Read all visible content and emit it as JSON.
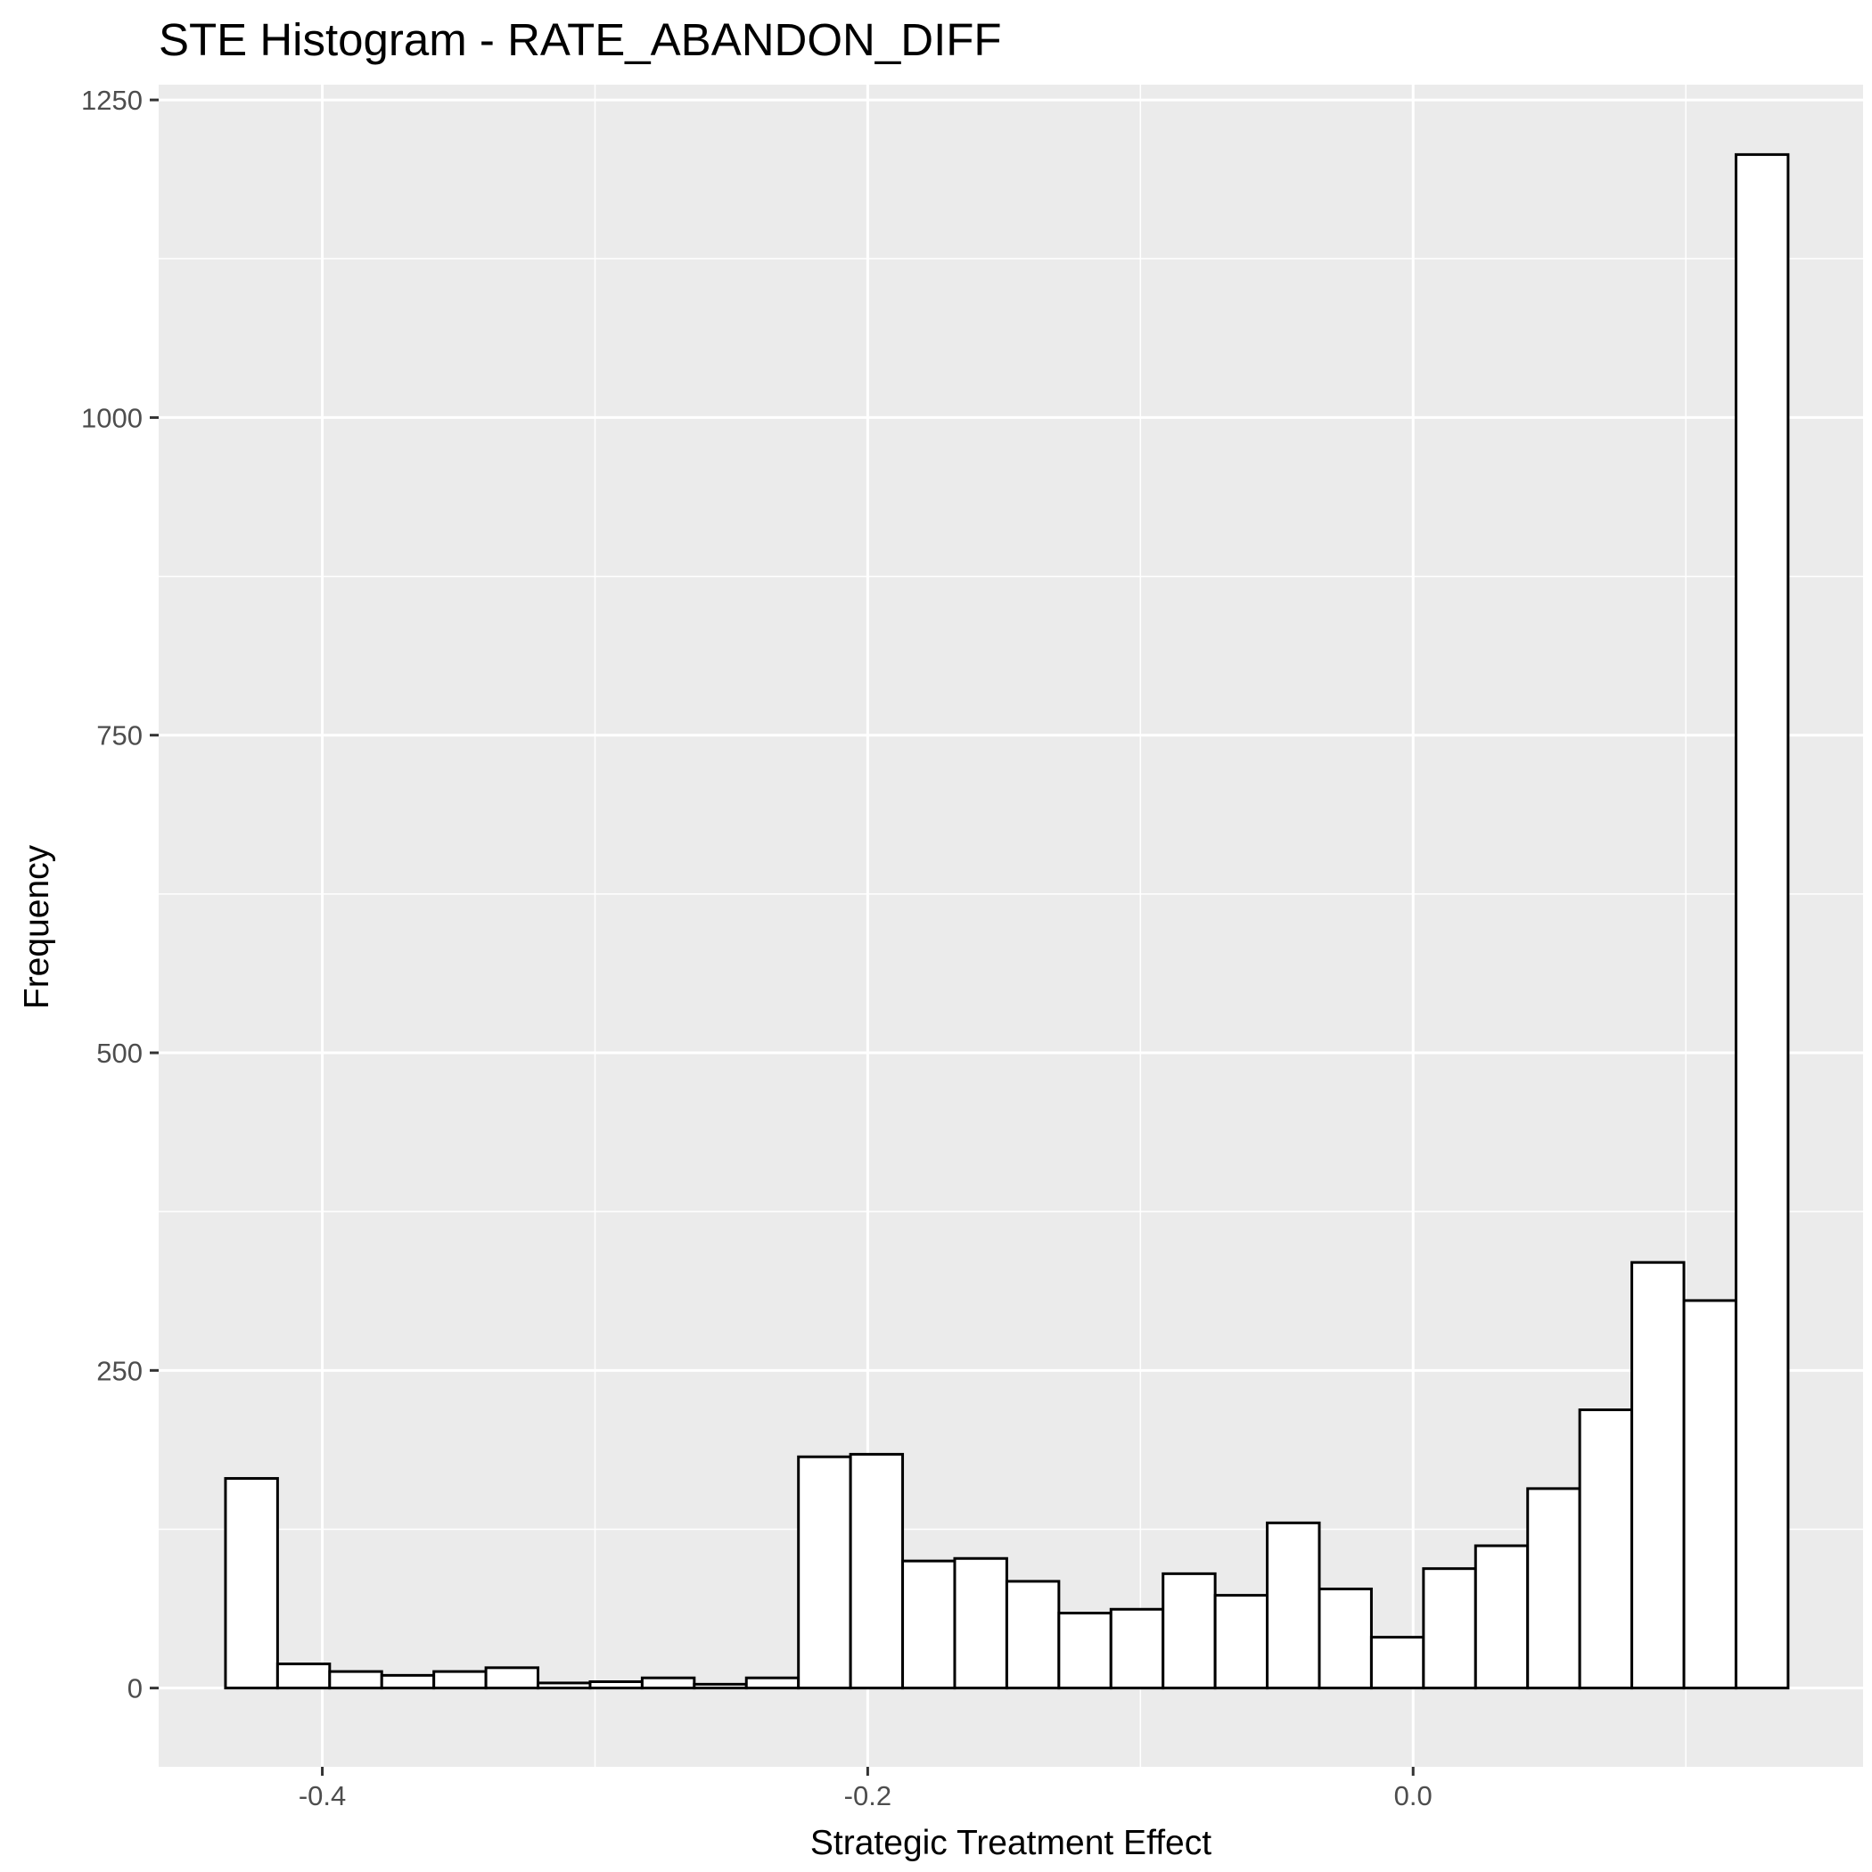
{
  "chart_data": {
    "type": "bar",
    "subtype": "histogram",
    "title": "STE Histogram -  RATE_ABANDON_DIFF",
    "xlabel": "Strategic Treatment Effect",
    "ylabel": "Frequency",
    "xlim": [
      -0.46,
      0.165
    ],
    "ylim": [
      -62,
      1262
    ],
    "x_ticks": [
      -0.4,
      -0.2,
      0.0
    ],
    "x_tick_labels": [
      "-0.4",
      "-0.2",
      "0.0"
    ],
    "y_ticks": [
      0,
      250,
      500,
      750,
      1000,
      1250
    ],
    "y_tick_labels": [
      "0",
      "250",
      "500",
      "750",
      "1000",
      "1250"
    ],
    "grid": true,
    "colors": {
      "panel": "#ebebeb",
      "grid": "#ffffff",
      "bar_fill": "#ffffff",
      "bar_stroke": "#000000",
      "tick": "#333333"
    },
    "bins": [
      {
        "x0": -0.4355,
        "x1": -0.4164,
        "count": 165
      },
      {
        "x0": -0.4164,
        "x1": -0.3973,
        "count": 19
      },
      {
        "x0": -0.3973,
        "x1": -0.3782,
        "count": 13
      },
      {
        "x0": -0.3782,
        "x1": -0.3591,
        "count": 10
      },
      {
        "x0": -0.3591,
        "x1": -0.34,
        "count": 13
      },
      {
        "x0": -0.34,
        "x1": -0.3209,
        "count": 16
      },
      {
        "x0": -0.3209,
        "x1": -0.3018,
        "count": 4
      },
      {
        "x0": -0.3018,
        "x1": -0.2827,
        "count": 5
      },
      {
        "x0": -0.2827,
        "x1": -0.2636,
        "count": 8
      },
      {
        "x0": -0.2636,
        "x1": -0.2445,
        "count": 3
      },
      {
        "x0": -0.2445,
        "x1": -0.2254,
        "count": 8
      },
      {
        "x0": -0.2254,
        "x1": -0.2063,
        "count": 182
      },
      {
        "x0": -0.2063,
        "x1": -0.1872,
        "count": 184
      },
      {
        "x0": -0.1872,
        "x1": -0.1681,
        "count": 100
      },
      {
        "x0": -0.1681,
        "x1": -0.149,
        "count": 102
      },
      {
        "x0": -0.149,
        "x1": -0.1299,
        "count": 84
      },
      {
        "x0": -0.1299,
        "x1": -0.1108,
        "count": 59
      },
      {
        "x0": -0.1108,
        "x1": -0.0917,
        "count": 62
      },
      {
        "x0": -0.0917,
        "x1": -0.0726,
        "count": 90
      },
      {
        "x0": -0.0726,
        "x1": -0.0535,
        "count": 73
      },
      {
        "x0": -0.0535,
        "x1": -0.0344,
        "count": 130
      },
      {
        "x0": -0.0344,
        "x1": -0.0153,
        "count": 78
      },
      {
        "x0": -0.0153,
        "x1": 0.0038,
        "count": 40
      },
      {
        "x0": 0.0038,
        "x1": 0.0229,
        "count": 94
      },
      {
        "x0": 0.0229,
        "x1": 0.042,
        "count": 112
      },
      {
        "x0": 0.042,
        "x1": 0.0611,
        "count": 157
      },
      {
        "x0": 0.0611,
        "x1": 0.0802,
        "count": 219
      },
      {
        "x0": 0.0802,
        "x1": 0.0993,
        "count": 335
      },
      {
        "x0": 0.0993,
        "x1": 0.1184,
        "count": 305
      },
      {
        "x0": 0.1184,
        "x1": 0.1375,
        "count": 1207
      }
    ]
  }
}
